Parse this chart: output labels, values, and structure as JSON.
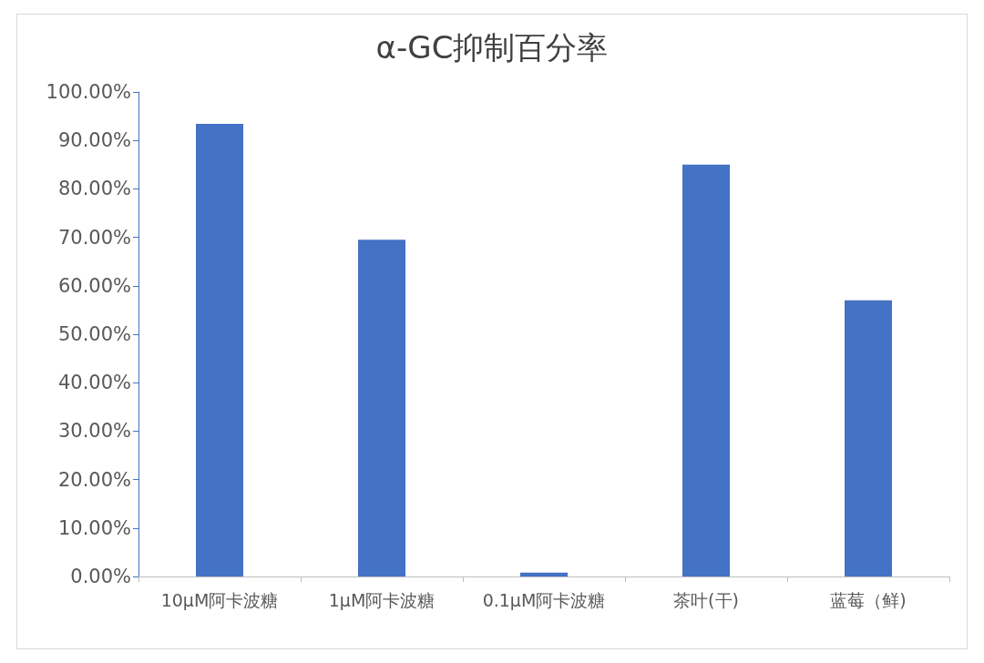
{
  "chart_data": {
    "type": "bar",
    "title": "α-GC抑制百分率",
    "categories": [
      "10μM阿卡波糖",
      "1μM阿卡波糖",
      "0.1μM阿卡波糖",
      "茶叶(干)",
      "蓝莓（鲜)"
    ],
    "values": [
      93.4,
      69.5,
      0.8,
      85.0,
      57.0
    ],
    "color": "#4472c4",
    "ylim": [
      0,
      100
    ],
    "yticks": [
      {
        "value": 0,
        "label": "0.00%"
      },
      {
        "value": 10,
        "label": "10.00%"
      },
      {
        "value": 20,
        "label": "20.00%"
      },
      {
        "value": 30,
        "label": "30.00%"
      },
      {
        "value": 40,
        "label": "40.00%"
      },
      {
        "value": 50,
        "label": "50.00%"
      },
      {
        "value": 60,
        "label": "60.00%"
      },
      {
        "value": 70,
        "label": "70.00%"
      },
      {
        "value": 80,
        "label": "80.00%"
      },
      {
        "value": 90,
        "label": "90.00%"
      },
      {
        "value": 100,
        "label": "100.00%"
      }
    ],
    "grid": false
  }
}
